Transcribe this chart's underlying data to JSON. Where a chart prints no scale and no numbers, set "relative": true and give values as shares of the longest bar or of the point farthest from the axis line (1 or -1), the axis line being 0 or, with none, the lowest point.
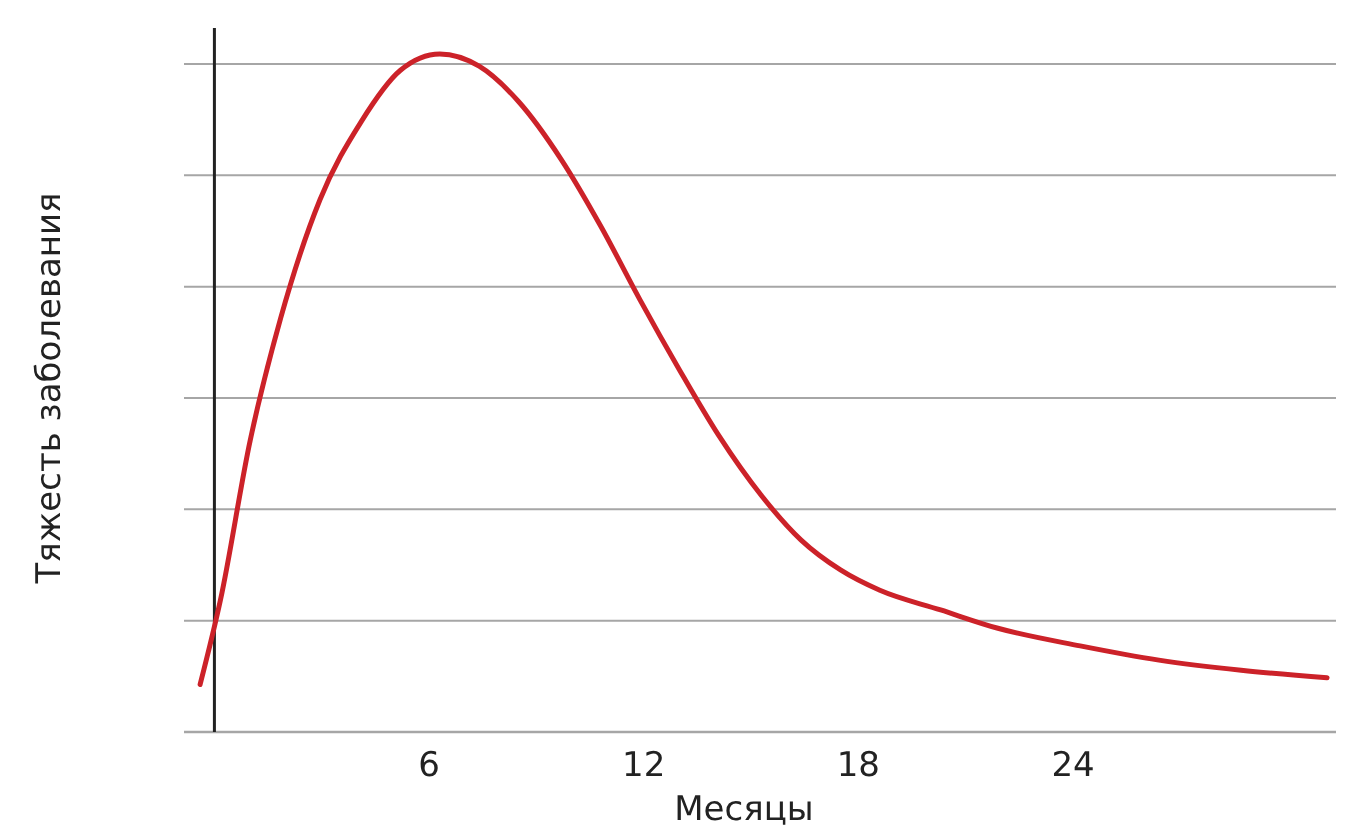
{
  "chart_data": {
    "type": "line",
    "relative": true,
    "xlabel": "Месяцы",
    "ylabel": "Тяжесть заболевания",
    "xlim": [
      -0.85,
      31.35
    ],
    "xticks": [
      6,
      12,
      18,
      24
    ],
    "grid": "y",
    "marker": "none",
    "line_style": "solid",
    "series": [
      {
        "color": "#cc2229",
        "x": [
          -0.4,
          0.17,
          1.0,
          1.85,
          2.95,
          4.1,
          5.2,
          6.3,
          7.4,
          8.5,
          9.7,
          10.8,
          11.9,
          13.0,
          14.1,
          15.3,
          16.4,
          17.5,
          18.6,
          20.3,
          21.9,
          24.2,
          26.4,
          28.7,
          31.1
        ],
        "values": [
          0.07,
          0.195,
          0.43,
          0.61,
          0.785,
          0.9,
          0.976,
          1.0,
          0.982,
          0.93,
          0.844,
          0.746,
          0.637,
          0.534,
          0.437,
          0.348,
          0.283,
          0.239,
          0.209,
          0.18,
          0.153,
          0.127,
          0.106,
          0.091,
          0.08
        ]
      }
    ]
  }
}
